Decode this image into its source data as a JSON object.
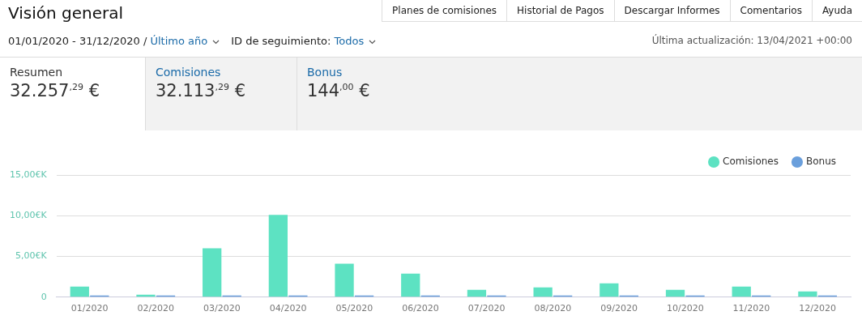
{
  "chart_data": {
    "type": "bar",
    "title": "Visión general",
    "annotations": [
      "Planes de comisiones",
      "Historial de Pagos",
      "Descargar Informes",
      "Comentarios",
      "Ayuda",
      "01/01/2020 - 31/12/2020 / ",
      "Último año",
      "ID de seguimiento: ",
      "Todos",
      "Última actualización: 13/04/2021 +00:00",
      "Resumen",
      "32.257$^{,29}$ €",
      "Comisiones",
      "32.113$^{,29}$ €",
      "Bonus",
      "144$^{,00}$ €"
    ],
    "categories": [
      "01/2020",
      "02/2020",
      "03/2020",
      "04/2020",
      "05/2020",
      "06/2020",
      "07/2020",
      "08/2020",
      "09/2020",
      "10/2020",
      "11/2020",
      "12/2020"
    ],
    "series": [
      {
        "name": "Comisiones",
        "color": "#5de2c2",
        "values": [
          1.3,
          0.3,
          6.0,
          10.1,
          4.1,
          2.9,
          0.9,
          1.2,
          1.7,
          0.9,
          1.3,
          0.7
        ]
      },
      {
        "name": "Bonus",
        "color": "#6a9fdc",
        "values": [
          0.2,
          0.2,
          0.2,
          0.2,
          0.2,
          0.2,
          0.2,
          0.2,
          0.2,
          0.2,
          0.2,
          0.2
        ]
      }
    ],
    "ylim": [
      0,
      15
    ],
    "yticks": [
      0,
      {
        "value": 5,
        "label": "5,00€K"
      },
      {
        "value": 10,
        "label": "10,00€K"
      },
      {
        "value": 15,
        "label": "15,00€K"
      }
    ],
    "grid": "y",
    "legend": "top right"
  }
}
